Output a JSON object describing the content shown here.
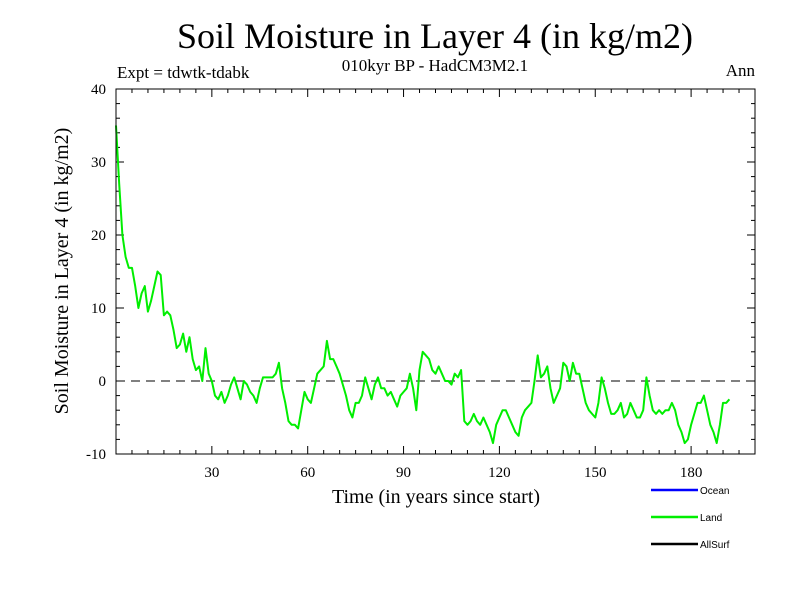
{
  "chart_data": {
    "type": "line",
    "title": "Soil Moisture in Layer 4 (in kg/m2)",
    "subtitle": "010kyr BP - HadCM3M2.1",
    "expt_label": "Expt = tdwtk-tdabk",
    "period_label": "Ann",
    "xlabel": "Time (in years since start)",
    "ylabel": "Soil Moisture in Layer 4 (in kg/m2)",
    "xlim": [
      0,
      200
    ],
    "ylim": [
      -10,
      40
    ],
    "xticks": [
      30,
      60,
      90,
      120,
      150,
      180
    ],
    "yticks": [
      -10,
      0,
      10,
      20,
      30,
      40
    ],
    "reference_line": 0,
    "legend": [
      {
        "name": "Ocean",
        "color": "#0000ff"
      },
      {
        "name": "Land",
        "color": "#00ee00"
      },
      {
        "name": "AllSurf",
        "color": "#000000"
      }
    ],
    "series": [
      {
        "name": "Land",
        "color": "#00ee00",
        "x_start": 0,
        "x_step": 1,
        "values": [
          35,
          27,
          20,
          17,
          15.5,
          15.5,
          13,
          10,
          12,
          13,
          9.5,
          11,
          13,
          15,
          14.5,
          9,
          9.5,
          9,
          7,
          4.5,
          5,
          6.5,
          4,
          6,
          3,
          1.5,
          2,
          0,
          4.5,
          1,
          0,
          -2,
          -2.5,
          -1.5,
          -3,
          -2,
          -0.5,
          0.5,
          -1,
          -2.5,
          0,
          -0.5,
          -1.5,
          -2,
          -3,
          -1,
          0.5,
          0.5,
          0.5,
          0.5,
          1,
          2.5,
          -1,
          -3,
          -5.5,
          -6,
          -6,
          -6.5,
          -4,
          -1.5,
          -2.5,
          -3,
          -1,
          1,
          1.5,
          2,
          5.5,
          3,
          3,
          2,
          1,
          -0.5,
          -2,
          -4,
          -5,
          -3,
          -3,
          -2,
          0.5,
          -1,
          -2.5,
          -0.5,
          0.5,
          -1,
          -1,
          -2,
          -1.5,
          -2.5,
          -3.5,
          -2,
          -1.5,
          -1,
          1,
          -1,
          -4,
          1.5,
          4,
          3.5,
          3,
          1.5,
          1,
          2,
          1,
          0,
          0,
          -0.5,
          1,
          0.5,
          1.5,
          -5.5,
          -6,
          -5.5,
          -4.5,
          -5.5,
          -6,
          -5,
          -6,
          -7,
          -8.5,
          -6,
          -5,
          -4,
          -4,
          -5,
          -6,
          -7,
          -7.5,
          -5,
          -4,
          -3.5,
          -3,
          0,
          3.5,
          0.5,
          1,
          2,
          -1,
          -3,
          -2,
          -1,
          2.5,
          2,
          0,
          2.5,
          1,
          1,
          -1,
          -3,
          -4,
          -4.5,
          -5,
          -3,
          0.5,
          -1,
          -3,
          -4.5,
          -4.5,
          -4,
          -3,
          -5,
          -4.5,
          -3,
          -4,
          -5,
          -5,
          -4,
          0.5,
          -2,
          -4,
          -4.5,
          -4,
          -4.5,
          -4,
          -4,
          -3,
          -4,
          -6,
          -7,
          -8.5,
          -8,
          -6,
          -4.5,
          -3,
          -3,
          -2,
          -4,
          -6,
          -7,
          -8.5,
          -6,
          -3,
          -3,
          -2.5
        ]
      }
    ]
  }
}
